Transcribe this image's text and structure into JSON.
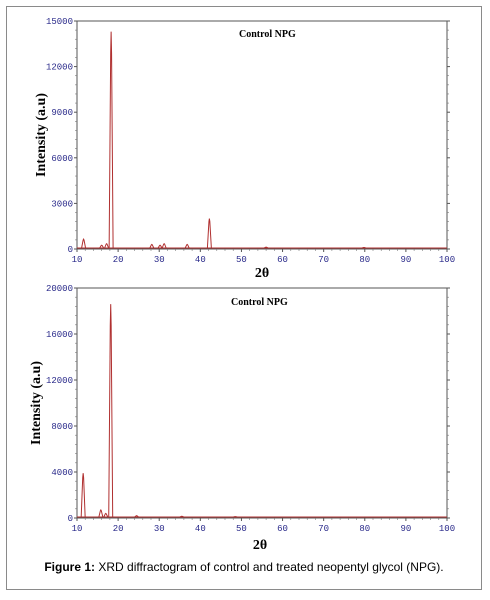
{
  "caption": {
    "label": "Figure 1:",
    "text": "XRD diffractogram of control and treated neopentyl glycol (NPG)."
  },
  "colors": {
    "series": "#b03030",
    "frame": "#555555",
    "tick_text": "#2a2a8a"
  },
  "chart_data": [
    {
      "type": "line",
      "title": "Control NPG",
      "xlabel": "2θ",
      "ylabel": "Intensity (a.u)",
      "xlim": [
        10,
        100
      ],
      "ylim": [
        0,
        15000
      ],
      "xticks": [
        "10",
        "20",
        "30",
        "40",
        "50",
        "60",
        "70",
        "80",
        "90",
        "100"
      ],
      "yticks": [
        "0",
        "3000",
        "6000",
        "9000",
        "12000",
        "15000"
      ],
      "grid": false,
      "series": [
        {
          "peaks": [
            {
              "x": 11.6,
              "y": 650
            },
            {
              "x": 16.0,
              "y": 250
            },
            {
              "x": 17.2,
              "y": 350
            },
            {
              "x": 18.3,
              "y": 14300
            },
            {
              "x": 28.2,
              "y": 300
            },
            {
              "x": 30.2,
              "y": 250
            },
            {
              "x": 31.2,
              "y": 350
            },
            {
              "x": 36.8,
              "y": 300
            },
            {
              "x": 42.2,
              "y": 2000
            },
            {
              "x": 56.0,
              "y": 120
            },
            {
              "x": 79.8,
              "y": 100
            }
          ]
        }
      ]
    },
    {
      "type": "line",
      "title": "Control NPG",
      "xlabel": "2θ",
      "ylabel": "Intensity (a.u)",
      "xlim": [
        10,
        100
      ],
      "ylim": [
        0,
        20000
      ],
      "xticks": [
        "10",
        "20",
        "30",
        "40",
        "50",
        "60",
        "70",
        "80",
        "90",
        "100"
      ],
      "yticks": [
        "0",
        "4000",
        "8000",
        "12000",
        "16000",
        "20000"
      ],
      "grid": false,
      "series": [
        {
          "peaks": [
            {
              "x": 11.5,
              "y": 3900
            },
            {
              "x": 15.8,
              "y": 700
            },
            {
              "x": 17.0,
              "y": 400
            },
            {
              "x": 18.2,
              "y": 18600
            },
            {
              "x": 24.5,
              "y": 200
            },
            {
              "x": 35.5,
              "y": 150
            },
            {
              "x": 48.5,
              "y": 120
            }
          ]
        }
      ]
    }
  ]
}
